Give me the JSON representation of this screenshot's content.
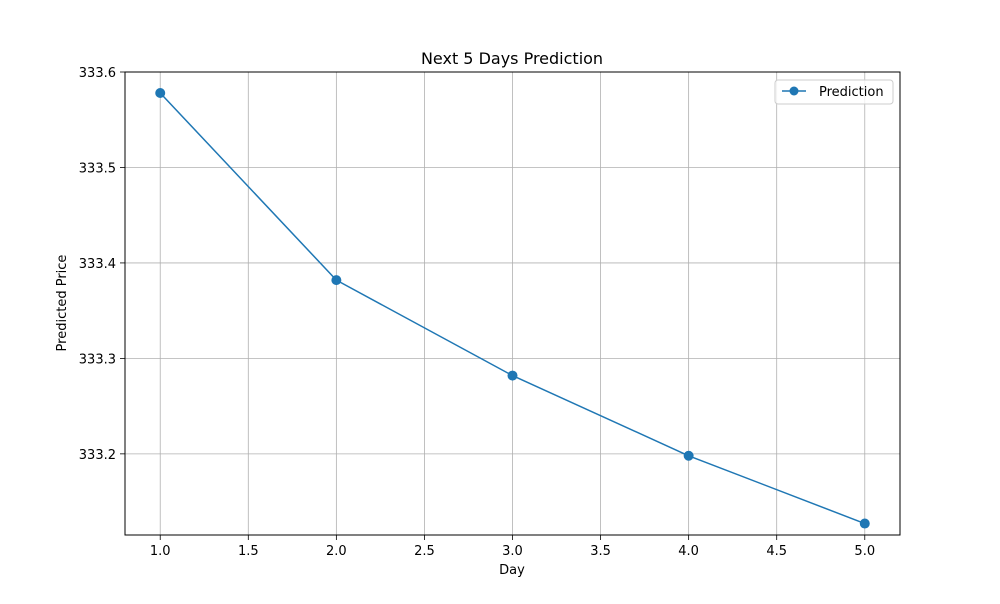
{
  "chart_data": {
    "type": "line",
    "title": "Next 5 Days Prediction",
    "xlabel": "Day",
    "ylabel": "Predicted Price",
    "xlim": [
      0.8,
      5.2
    ],
    "ylim": [
      333.115,
      333.6
    ],
    "x_ticks": [
      "1.0",
      "1.5",
      "2.0",
      "2.5",
      "3.0",
      "3.5",
      "4.0",
      "4.5",
      "5.0"
    ],
    "y_ticks": [
      "333.2",
      "333.3",
      "333.4",
      "333.5",
      "333.6"
    ],
    "grid": true,
    "legend_position": "top-right",
    "series": [
      {
        "name": "Prediction",
        "color": "#1f77b4",
        "marker": "circle",
        "x": [
          1,
          2,
          3,
          4,
          5
        ],
        "values": [
          333.578,
          333.382,
          333.282,
          333.198,
          333.127
        ]
      }
    ]
  }
}
